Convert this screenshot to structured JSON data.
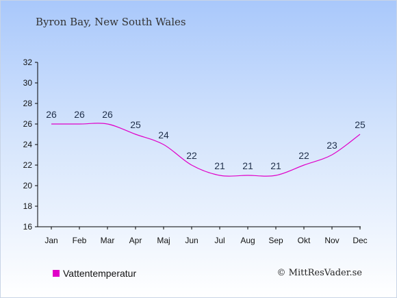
{
  "title": "Byron Bay, New South Wales",
  "credit": "© MittResVader.se",
  "chart_data": {
    "type": "line",
    "title": "Byron Bay, New South Wales",
    "xlabel": "",
    "ylabel": "",
    "categories": [
      "Jan",
      "Feb",
      "Mar",
      "Apr",
      "Maj",
      "Jun",
      "Jul",
      "Aug",
      "Sep",
      "Okt",
      "Nov",
      "Dec"
    ],
    "series": [
      {
        "name": "Vattentemperatur",
        "values": [
          26,
          26,
          26,
          25,
          24,
          22,
          21,
          21,
          21,
          22,
          23,
          25
        ],
        "color": "#e000c8"
      }
    ],
    "ylim": [
      16,
      32
    ],
    "yticks": [
      16,
      18,
      20,
      22,
      24,
      26,
      28,
      30,
      32
    ],
    "grid": false,
    "legend_position": "bottom-left"
  }
}
